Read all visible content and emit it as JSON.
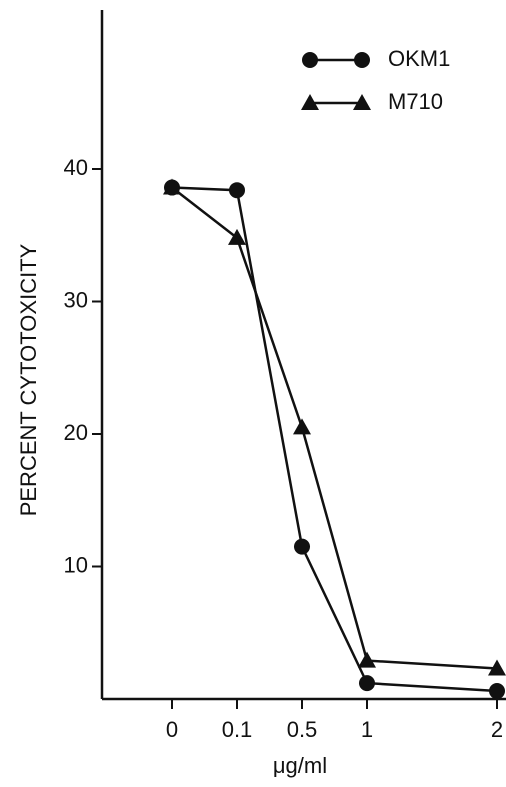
{
  "chart_data": {
    "type": "line",
    "x_label": "μg/ml",
    "y_label": "PERCENT CYTOTOXICITY",
    "categories": [
      "0",
      "0.1",
      "0.5",
      "1",
      "2"
    ],
    "series": [
      {
        "name": "OKM1",
        "color": "#111111",
        "marker": "circle",
        "values": [
          38.6,
          38.4,
          11.5,
          1.2,
          0.6
        ]
      },
      {
        "name": "M710",
        "color": "#111111",
        "marker": "triangle",
        "values": [
          38.6,
          34.8,
          20.5,
          2.9,
          2.3
        ]
      }
    ],
    "ylim": [
      0,
      52
    ],
    "yticks": [
      10,
      20,
      30,
      40
    ],
    "grid": false,
    "legend": "top-right"
  }
}
